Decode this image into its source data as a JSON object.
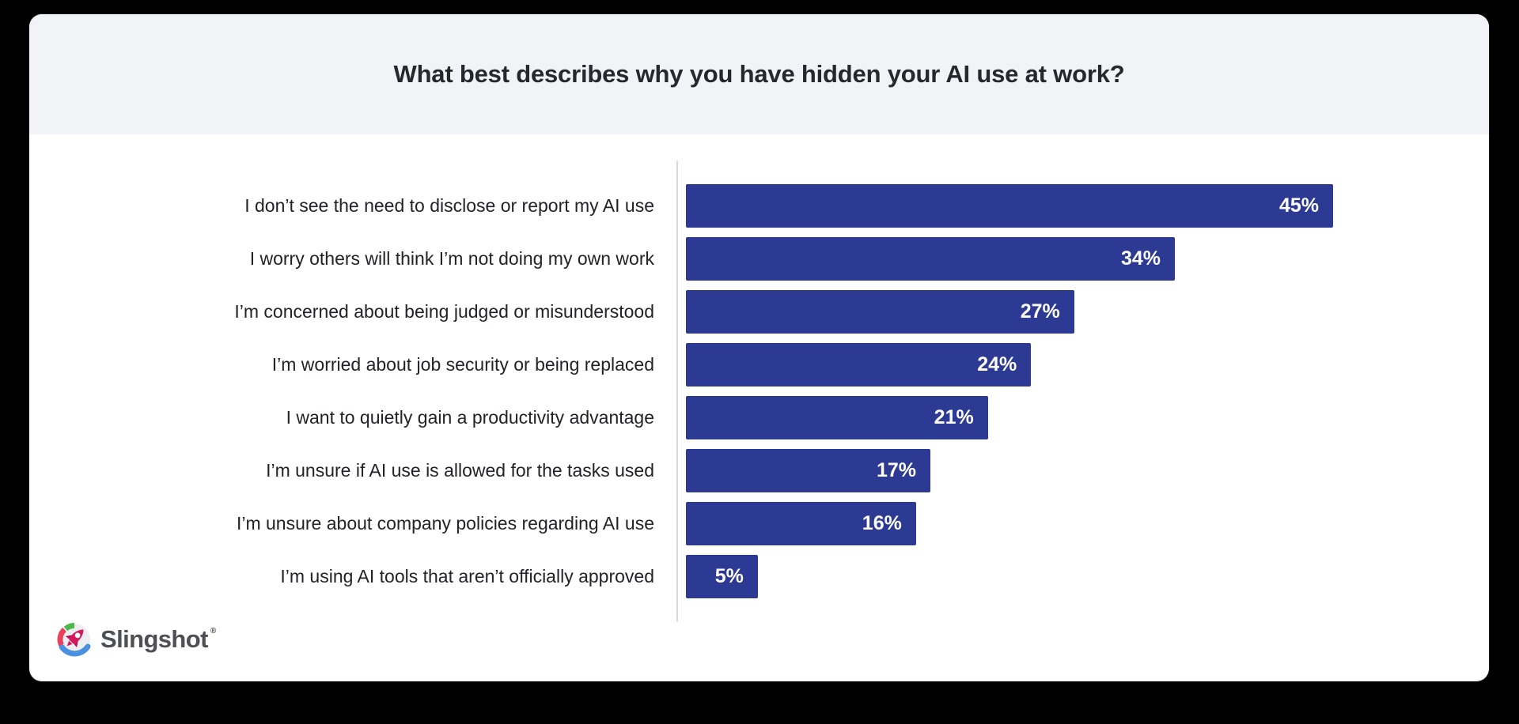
{
  "page": {
    "background_color": "#000000"
  },
  "card": {
    "background_color": "#ffffff"
  },
  "header": {
    "title": "What best describes why you have hidden your AI use at work?",
    "background_color": "#f2f3f7",
    "title_color": "#26282e"
  },
  "chart_data": {
    "type": "bar",
    "orientation": "horizontal",
    "title": "What best describes why you have hidden your AI use at work?",
    "xlabel": "",
    "ylabel": "",
    "grid": false,
    "legend": false,
    "axis_max": 45,
    "categories": [
      "I don’t see the need to disclose or report my AI use",
      "I worry others will think I’m not doing my own work",
      "I’m concerned about being judged or misunderstood",
      "I’m worried about job security or being replaced",
      "I want to quietly gain a productivity advantage",
      "I’m unsure if AI use is allowed for the tasks used",
      "I’m unsure about company policies regarding AI use",
      "I’m using AI tools that aren’t officially approved"
    ],
    "values": [
      45,
      34,
      27,
      24,
      21,
      17,
      16,
      5
    ],
    "value_labels": [
      "45%",
      "34%",
      "27%",
      "24%",
      "21%",
      "17%",
      "16%",
      "5%"
    ],
    "bar_color": "#2d3a94",
    "value_label_color": "#ffffff",
    "category_label_color": "#212328",
    "axis_line_color": "#d9dade"
  },
  "logo": {
    "text": "Slingshot",
    "trademark": "®",
    "icon": "slingshot-rocket-icon",
    "colors": {
      "wordmark": "#4d4f54",
      "circle": "#eceef2",
      "arc_green": "#4db94c",
      "arc_red": "#e8435a",
      "arc_blue": "#4a90e0",
      "rocket": "#d6185e",
      "rocket_dark": "#b3124e"
    }
  }
}
